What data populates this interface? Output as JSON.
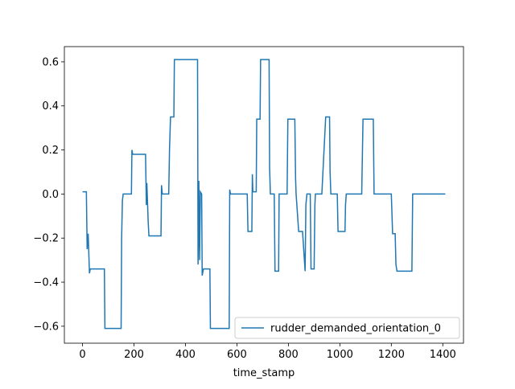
{
  "chart_data": {
    "type": "line",
    "xlabel": "time_stamp",
    "x": [
      0,
      15,
      18,
      22,
      27,
      30,
      85,
      87,
      150,
      152,
      155,
      158,
      190,
      192,
      195,
      245,
      248,
      250,
      255,
      258,
      305,
      307,
      310,
      335,
      338,
      342,
      355,
      357,
      447,
      449,
      452,
      455,
      458,
      463,
      465,
      470,
      495,
      497,
      570,
      572,
      575,
      640,
      643,
      658,
      660,
      662,
      675,
      677,
      690,
      692,
      725,
      727,
      730,
      745,
      748,
      762,
      764,
      795,
      798,
      825,
      828,
      830,
      840,
      855,
      865,
      868,
      872,
      885,
      888,
      900,
      903,
      905,
      930,
      945,
      960,
      962,
      965,
      990,
      993,
      1020,
      1022,
      1025,
      1085,
      1090,
      1130,
      1133,
      1200,
      1205,
      1215,
      1218,
      1222,
      1280,
      1283,
      1410
    ],
    "series": [
      {
        "name": "rudder_demanded_orientation_0",
        "color": "#1f77b4",
        "values": [
          0.01,
          0.01,
          -0.25,
          -0.18,
          -0.36,
          -0.34,
          -0.34,
          -0.61,
          -0.61,
          -0.2,
          -0.03,
          0,
          0,
          0.2,
          0.18,
          0.18,
          -0.05,
          0.05,
          -0.12,
          -0.19,
          -0.19,
          0.04,
          0,
          0,
          0.2,
          0.35,
          0.35,
          0.61,
          0.61,
          -0.32,
          0.06,
          -0.3,
          0.01,
          0,
          -0.37,
          -0.34,
          -0.34,
          -0.61,
          -0.61,
          0.02,
          0,
          0,
          -0.17,
          -0.17,
          0.09,
          0.01,
          0.01,
          0.34,
          0.34,
          0.61,
          0.61,
          0.12,
          0,
          0,
          -0.35,
          -0.35,
          0,
          0,
          0.34,
          0.34,
          0.07,
          0,
          -0.17,
          -0.17,
          -0.35,
          -0.05,
          0,
          0,
          -0.34,
          -0.34,
          -0.05,
          0,
          0,
          0.35,
          0.35,
          0.1,
          0,
          0,
          -0.17,
          -0.17,
          -0.05,
          0,
          0,
          0.34,
          0.34,
          0,
          0,
          -0.18,
          -0.18,
          -0.32,
          -0.35,
          -0.35,
          0,
          0
        ]
      }
    ],
    "xlim": [
      -70.5,
      1480.5
    ],
    "ylim": [
      -0.677,
      0.669
    ],
    "xticks": [
      0,
      200,
      400,
      600,
      800,
      1000,
      1200,
      1400
    ],
    "yticks": [
      {
        "value": -0.6,
        "label": "−0.6"
      },
      {
        "value": -0.4,
        "label": "−0.4"
      },
      {
        "value": -0.2,
        "label": "−0.2"
      },
      {
        "value": 0,
        "label": "0.0"
      },
      0.2,
      0.4,
      0.6
    ],
    "legend": "lower right"
  }
}
